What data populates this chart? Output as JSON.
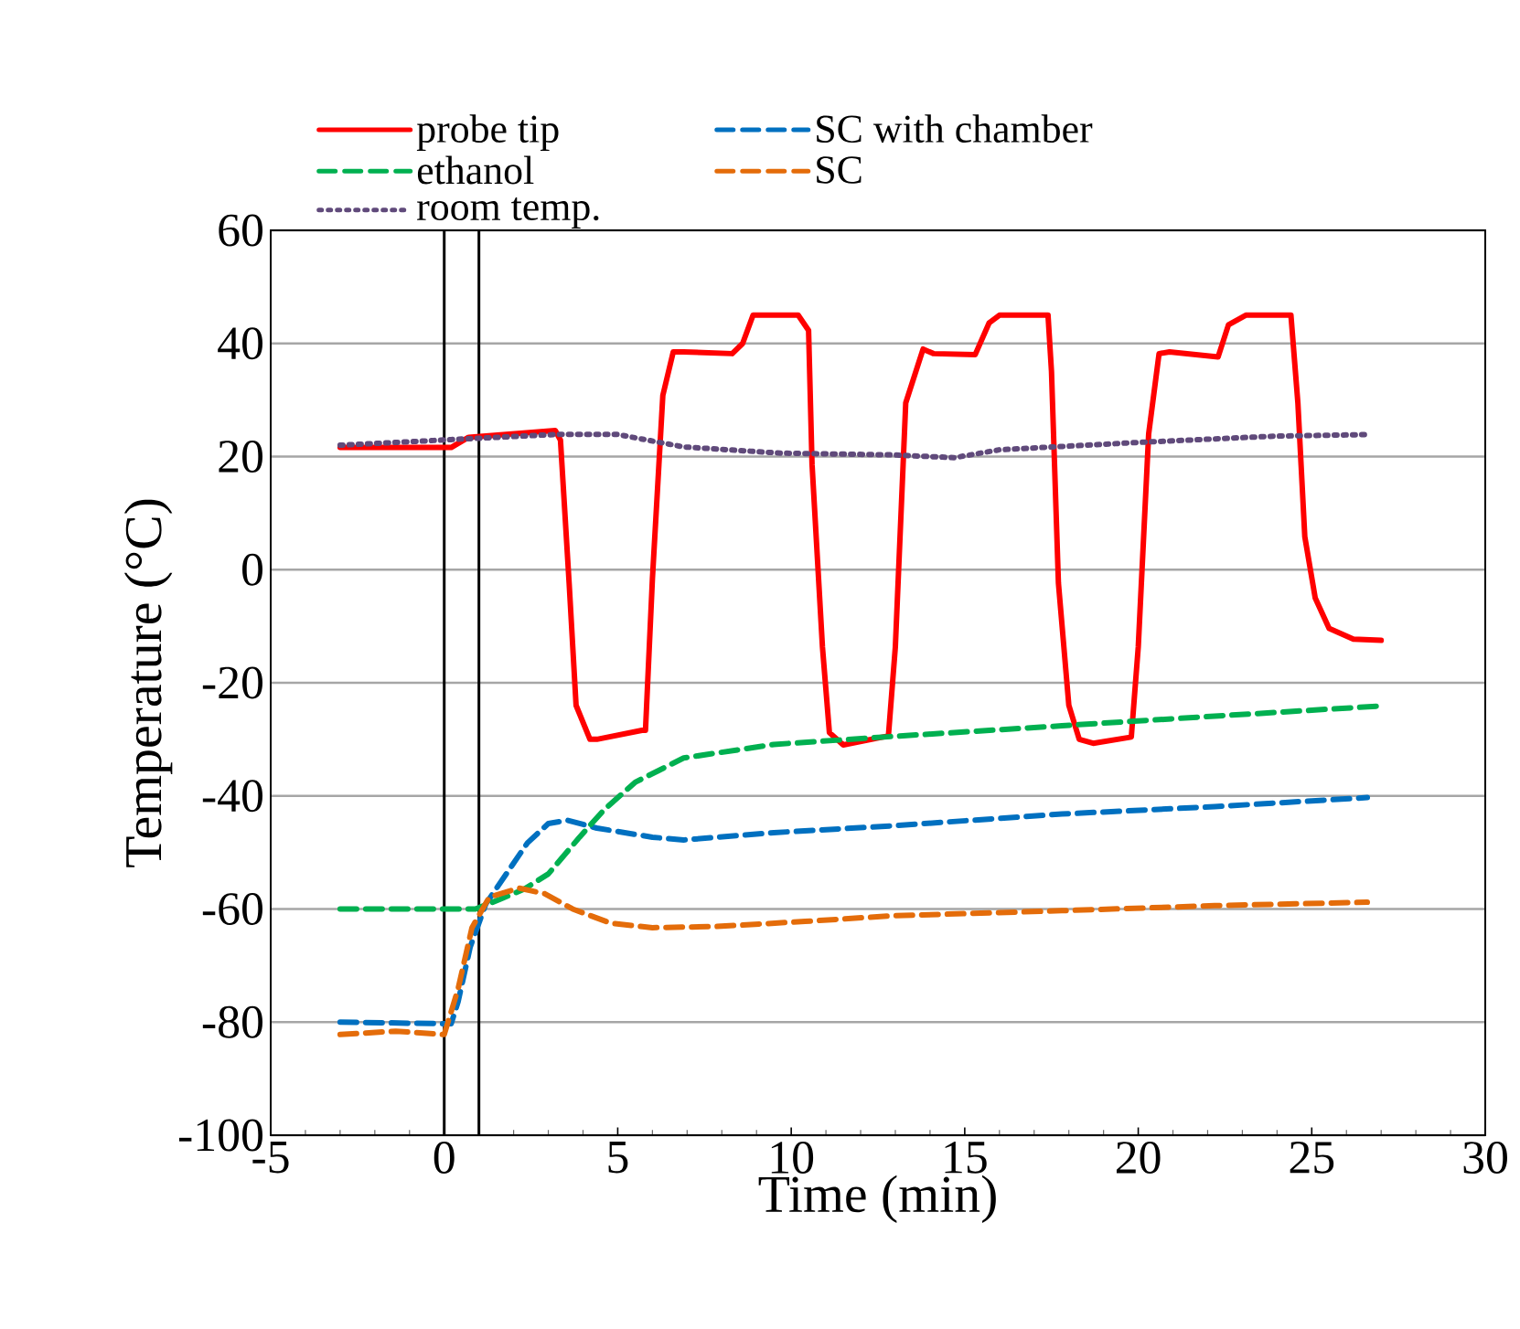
{
  "chart_data": {
    "type": "line",
    "xlabel": "Time (min)",
    "ylabel": "Temperature (°C)",
    "xlim": [
      -5,
      30
    ],
    "ylim": [
      -100,
      60
    ],
    "xticks": [
      -5,
      0,
      5,
      10,
      15,
      20,
      25,
      30
    ],
    "yticks": [
      -100,
      -80,
      -60,
      -40,
      -20,
      0,
      20,
      40,
      60
    ],
    "grid": "y",
    "legend": "top",
    "ref_lines": [
      {
        "axis": "x",
        "value": 0,
        "color": "#000000"
      },
      {
        "axis": "x",
        "value": 1,
        "color": "#000000"
      }
    ],
    "series": [
      {
        "name": "probe tip",
        "color": "#ff0000",
        "line_style": "solid",
        "x": [
          -3,
          0.2,
          0.7,
          3.2,
          3.35,
          3.6,
          3.8,
          4.2,
          4.4,
          5.7,
          5.8,
          6.0,
          6.3,
          6.6,
          6.9,
          8.3,
          8.6,
          8.9,
          10.2,
          10.5,
          10.6,
          10.9,
          11.1,
          11.5,
          12.8,
          13.0,
          13.3,
          13.8,
          14.1,
          15.3,
          15.7,
          16.0,
          17.4,
          17.5,
          17.7,
          18.0,
          18.3,
          18.7,
          19.8,
          20.0,
          20.3,
          20.6,
          20.9,
          22.3,
          22.6,
          23.1,
          24.4,
          24.6,
          24.8,
          25.1,
          25.5,
          26.2,
          27.0
        ],
        "values": [
          21.6,
          21.6,
          23.4,
          24.6,
          22.9,
          -2.4,
          -24,
          -30,
          -30,
          -28.4,
          -28.4,
          -1.6,
          30.8,
          38.5,
          38.5,
          38.2,
          40,
          45,
          45,
          42.3,
          18.6,
          -13.7,
          -28.8,
          -31,
          -29.4,
          -13.7,
          29.5,
          39,
          38.2,
          38,
          43.6,
          45,
          45,
          35,
          -2.4,
          -24,
          -30,
          -30.7,
          -29.6,
          -13.7,
          24,
          38.2,
          38.5,
          37.6,
          43.3,
          45,
          45,
          29.5,
          5.8,
          -5,
          -10.4,
          -12.3,
          -12.5
        ]
      },
      {
        "name": "SC with chamber",
        "color": "#0070c0",
        "line_style": "dashed",
        "x": [
          -3,
          0.2,
          0.4,
          0.75,
          1.2,
          1.8,
          2.4,
          3.0,
          3.55,
          4.4,
          6.0,
          6.9,
          9.5,
          12.9,
          17.8,
          22.2,
          26.6
        ],
        "values": [
          -80,
          -80.3,
          -76.4,
          -66.7,
          -59.1,
          -53.7,
          -48.3,
          -44.9,
          -44.3,
          -45.7,
          -47.3,
          -47.8,
          -46.5,
          -45.3,
          -43.2,
          -41.9,
          -40.3
        ]
      },
      {
        "name": "ethanol",
        "color": "#00b050",
        "line_style": "dashed",
        "x": [
          -3,
          0.9,
          1.6,
          2.3,
          3.0,
          3.9,
          4.6,
          5.5,
          6.9,
          9.5,
          12.9,
          17.8,
          22.2,
          27.0
        ],
        "values": [
          -60,
          -60,
          -58.3,
          -56.5,
          -53.8,
          -47.3,
          -42.5,
          -37.6,
          -33.3,
          -30.9,
          -29.5,
          -27.6,
          -25.9,
          -24.1
        ]
      },
      {
        "name": "SC",
        "color": "#e46c0a",
        "line_style": "dashed",
        "x": [
          -3,
          -1.4,
          0,
          0.4,
          0.8,
          1.3,
          2.15,
          2.9,
          3.7,
          4.8,
          6.0,
          7.8,
          10.4,
          12.9,
          17.8,
          22.2,
          26.6
        ],
        "values": [
          -82.2,
          -81.6,
          -82.2,
          -74.1,
          -63.3,
          -57.9,
          -56.3,
          -57.3,
          -60,
          -62.5,
          -63.3,
          -63.1,
          -62.2,
          -61.2,
          -60.3,
          -59.4,
          -58.8
        ]
      },
      {
        "name": "room temp.",
        "color": "#604a7b",
        "line_style": "dotted",
        "x": [
          -3,
          0.2,
          3.2,
          5.0,
          6.9,
          9.7,
          12.9,
          14.7,
          16.0,
          20.0,
          23.9,
          26.7
        ],
        "values": [
          22,
          23,
          23.9,
          23.9,
          21.7,
          20.6,
          20.3,
          19.8,
          21.2,
          22.5,
          23.6,
          23.9
        ]
      }
    ]
  }
}
